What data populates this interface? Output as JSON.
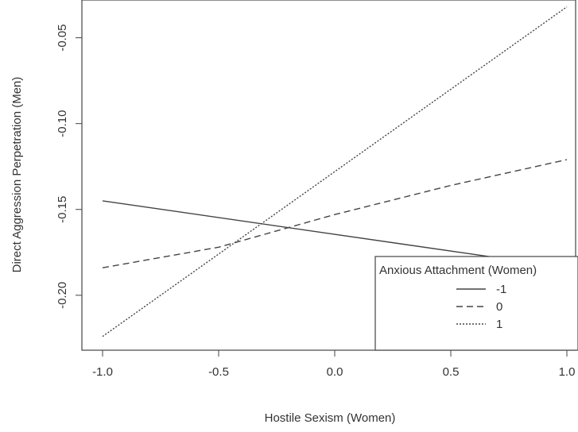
{
  "chart_data": {
    "type": "line",
    "title": "",
    "xlabel": "Hostile Sexism (Women)",
    "ylabel": "Direct Aggression Perpetration (Men)",
    "xlim": [
      -1.1,
      1.0
    ],
    "ylim": [
      -0.232,
      -0.028
    ],
    "x_ticks": [
      -1.0,
      -0.5,
      0.0,
      0.5,
      1.0
    ],
    "x_tick_labels": [
      "-1.0",
      "-0.5",
      "0.0",
      "0.5",
      "1.0"
    ],
    "y_ticks": [
      -0.05,
      -0.1,
      -0.15,
      -0.2
    ],
    "y_tick_labels": [
      "-0.05",
      "-0.10",
      "-0.15",
      "-0.20"
    ],
    "grid": false,
    "legend": {
      "title": "Anxious Attachment (Women)",
      "placement": "bottom-right"
    },
    "series": [
      {
        "name": "-1",
        "style": "solid",
        "x": [
          -1.0,
          1.0
        ],
        "y": [
          -0.145,
          -0.184
        ]
      },
      {
        "name": "0",
        "style": "dashed",
        "x": [
          -1.0,
          -0.5,
          0.0,
          0.5,
          1.0
        ],
        "y": [
          -0.184,
          -0.172,
          -0.153,
          -0.136,
          -0.121
        ]
      },
      {
        "name": "1",
        "style": "dotted",
        "x": [
          -1.0,
          1.0
        ],
        "y": [
          -0.224,
          -0.032
        ]
      }
    ]
  }
}
